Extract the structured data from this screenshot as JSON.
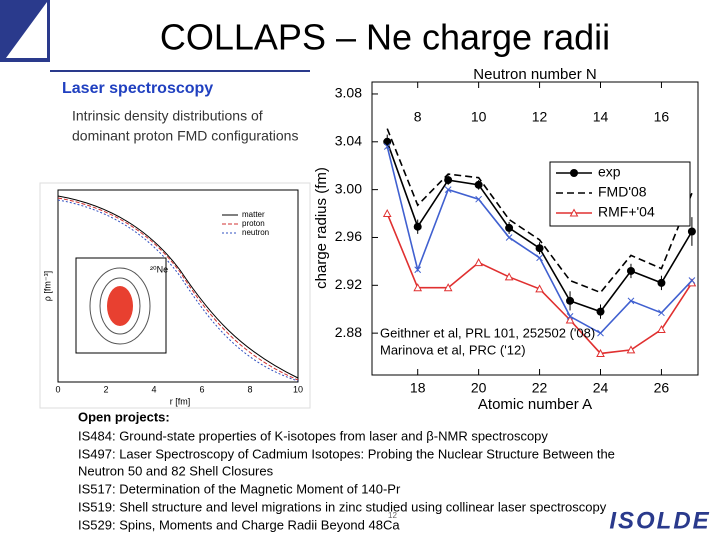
{
  "title": "COLLAPS – Ne charge radii",
  "section": "Laser spectroscopy",
  "inset": {
    "caption": [
      "Intrinsic density distributions of",
      "dominant proton FMD configurations"
    ],
    "legend": [
      "matter",
      "proton",
      "neutron"
    ],
    "ylabel": "ρ [fm⁻³]",
    "xlabel": "r [fm]",
    "xticks": [
      "0",
      "2",
      "4",
      "6",
      "8",
      "10"
    ],
    "nucleus": "²⁰Ne"
  },
  "references": [
    "Geithner et al, PRL 101, 252502 ('08)",
    "Marinova et al, PRC ('12)"
  ],
  "projects": {
    "heading": "Open projects:",
    "items": [
      "IS484: Ground-state properties of K-isotopes from laser and β-NMR spectroscopy",
      "IS497: Laser Spectroscopy of Cadmium Isotopes: Probing the Nuclear Structure Between the",
      "Neutron 50 and 82 Shell Closures",
      "IS517: Determination of the Magnetic Moment of 140-Pr",
      "IS519: Shell structure and level migrations in zinc studied using collinear laser spectroscopy",
      "IS529: Spins, Moments and Charge Radii Beyond 48Ca"
    ]
  },
  "slide_number": "12",
  "logo": "ISOLDE",
  "chart_data": {
    "type": "line",
    "xlabel": "Atomic number A",
    "ylabel": "charge radius (fm)",
    "x2label": "Neutron number N",
    "x": [
      17,
      18,
      19,
      20,
      21,
      22,
      23,
      24,
      25,
      26,
      27
    ],
    "series": [
      {
        "name": "exp",
        "color": "#000000",
        "marker": "circle",
        "dash": "none",
        "values": [
          3.04,
          2.969,
          3.008,
          3.004,
          2.968,
          2.951,
          2.907,
          2.898,
          2.932,
          2.922,
          2.965
        ],
        "errors": [
          0.006,
          0.006,
          0.004,
          0.004,
          0.005,
          0.005,
          0.008,
          0.006,
          0.006,
          0.006,
          0.012
        ]
      },
      {
        "name": "FMD'08",
        "color": "#000000",
        "marker": "none",
        "dash": "7,4",
        "values": [
          3.051,
          2.987,
          3.013,
          3.01,
          2.975,
          2.958,
          2.924,
          2.914,
          2.945,
          2.934,
          2.997
        ]
      },
      {
        "name": "RMF+'04",
        "color": "#e03030",
        "marker": "triangle",
        "dash": "none",
        "values": [
          2.98,
          2.918,
          2.918,
          2.939,
          2.927,
          2.917,
          2.891,
          2.863,
          2.866,
          2.883,
          2.922
        ]
      },
      {
        "color": "#4060d0",
        "marker": "cross",
        "dash": "none",
        "values": [
          3.036,
          2.933,
          3.0,
          2.992,
          2.96,
          2.943,
          2.894,
          2.88,
          2.907,
          2.897,
          2.924
        ]
      }
    ],
    "xlim": [
      16.5,
      27.2
    ],
    "ylim": [
      2.845,
      3.09
    ],
    "xticks": [
      18,
      20,
      22,
      24,
      26
    ],
    "x2ticks": [
      {
        "value": 18,
        "label": "8"
      },
      {
        "value": 20,
        "label": "10"
      },
      {
        "value": 22,
        "label": "12"
      },
      {
        "value": 24,
        "label": "14"
      },
      {
        "value": 26,
        "label": "16"
      }
    ],
    "yticks": [
      2.88,
      2.92,
      2.96,
      {
        "value": 3,
        "label": "3.00"
      },
      3.04,
      3.08
    ]
  }
}
